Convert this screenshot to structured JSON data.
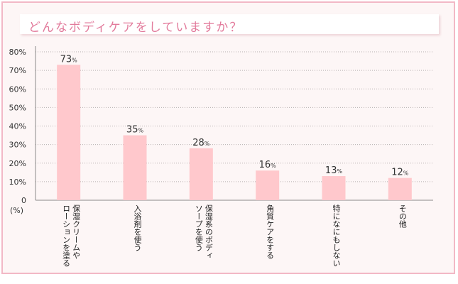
{
  "title": "どんなボディケアをしていますか？",
  "unit_label": "(%)",
  "colors": {
    "bar": "#ffc8cc",
    "title": "#e27a9b",
    "frame": "#f2b8c6",
    "background": "#fdf6f6"
  },
  "chart_data": {
    "type": "bar",
    "title": "どんなボディケアをしていますか？",
    "ylabel": "(%)",
    "ylim": [
      0,
      80
    ],
    "yticks": [
      "0",
      "10%",
      "20%",
      "30%",
      "40%",
      "50%",
      "60%",
      "70%",
      "80%"
    ],
    "grid": true,
    "value_suffix": "%",
    "categories": [
      [
        "保湿クリームや",
        "ローションを塗る"
      ],
      [
        "入浴剤を使う"
      ],
      [
        "保湿系のボディ",
        "ソープを使う"
      ],
      [
        "角質ケアをする"
      ],
      [
        "特になにもしない"
      ],
      [
        "その他"
      ]
    ],
    "values": [
      73,
      35,
      28,
      16,
      13,
      12
    ]
  }
}
